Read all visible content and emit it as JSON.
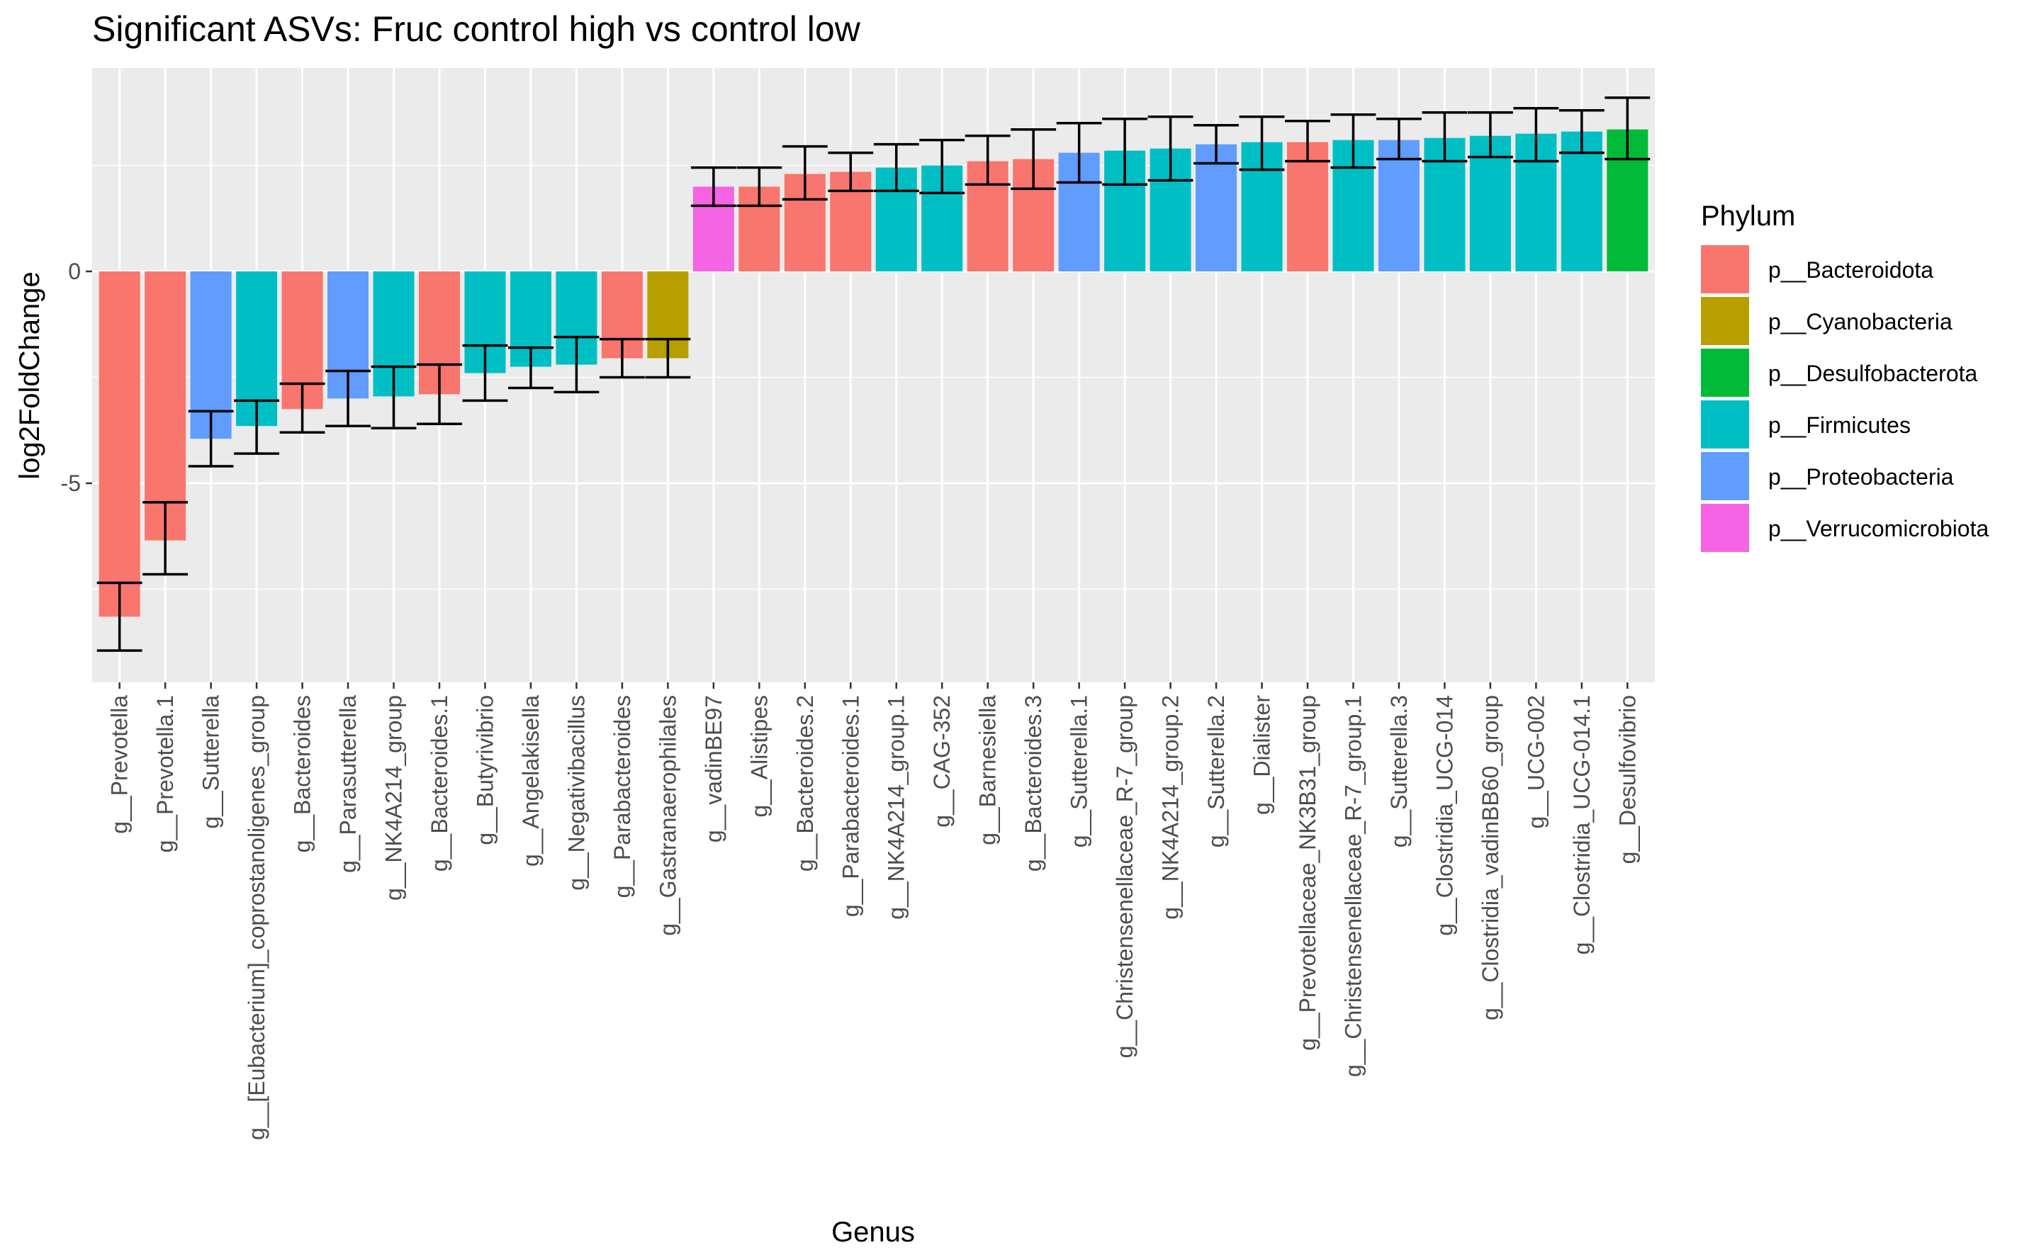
{
  "chart_data": {
    "type": "bar",
    "title": "Significant ASVs: Fruc control high vs control low",
    "xlabel": "Genus",
    "ylabel": "log2FoldChange",
    "ylim": [
      -9.7,
      4.8
    ],
    "yticks": [
      -5,
      0
    ],
    "grid": true,
    "legend": {
      "title": "Phylum",
      "position": "right",
      "entries": [
        {
          "name": "p__Bacteroidota",
          "color": "#F8766D"
        },
        {
          "name": "p__Cyanobacteria",
          "color": "#B79F00"
        },
        {
          "name": "p__Desulfobacterota",
          "color": "#00BA38"
        },
        {
          "name": "p__Firmicutes",
          "color": "#00BFC4"
        },
        {
          "name": "p__Proteobacteria",
          "color": "#619CFF"
        },
        {
          "name": "p__Verrucomicrobiota",
          "color": "#F564E3"
        }
      ]
    },
    "categories": [
      "g__Prevotella",
      "g__Prevotella.1",
      "g__Sutterella",
      "g__[Eubacterium]_coprostanoligenes_group",
      "g__Bacteroides",
      "g__Parasutterella",
      "g__NK4A214_group",
      "g__Bacteroides.1",
      "g__Butyrivibrio",
      "g__Angelakisella",
      "g__Negativibacillus",
      "g__Parabacteroides",
      "g__Gastranaerophilales",
      "g__vadinBE97",
      "g__Alistipes",
      "g__Bacteroides.2",
      "g__Parabacteroides.1",
      "g__NK4A214_group.1",
      "g__CAG-352",
      "g__Barnesiella",
      "g__Bacteroides.3",
      "g__Sutterella.1",
      "g__Christensenellaceae_R-7_group",
      "g__NK4A214_group.2",
      "g__Sutterella.2",
      "g__Dialister",
      "g__Prevotellaceae_NK3B31_group",
      "g__Christensenellaceae_R-7_group.1",
      "g__Sutterella.3",
      "g__Clostridia_UCG-014",
      "g__Clostridia_vadinBB60_group",
      "g__UCG-002",
      "g__Clostridia_UCG-014.1",
      "g__Desulfovibrio"
    ],
    "values": [
      -8.15,
      -6.35,
      -3.95,
      -3.65,
      -3.25,
      -3.0,
      -2.95,
      -2.9,
      -2.4,
      -2.25,
      -2.2,
      -2.05,
      -2.05,
      2.0,
      2.0,
      2.3,
      2.35,
      2.45,
      2.5,
      2.6,
      2.65,
      2.8,
      2.85,
      2.9,
      3.0,
      3.05,
      3.05,
      3.1,
      3.1,
      3.15,
      3.2,
      3.25,
      3.3,
      3.35
    ],
    "err_low": [
      -8.95,
      -7.15,
      -4.6,
      -4.3,
      -3.8,
      -3.65,
      -3.7,
      -3.6,
      -3.05,
      -2.75,
      -2.85,
      -2.5,
      -2.5,
      1.55,
      1.55,
      1.7,
      1.9,
      1.9,
      1.85,
      2.05,
      1.95,
      2.1,
      2.05,
      2.15,
      2.55,
      2.4,
      2.6,
      2.45,
      2.65,
      2.6,
      2.7,
      2.6,
      2.8,
      2.65
    ],
    "err_high": [
      -7.35,
      -5.45,
      -3.3,
      -3.05,
      -2.65,
      -2.35,
      -2.25,
      -2.2,
      -1.75,
      -1.8,
      -1.55,
      -1.6,
      -1.6,
      2.45,
      2.45,
      2.95,
      2.8,
      3.0,
      3.1,
      3.2,
      3.35,
      3.5,
      3.6,
      3.65,
      3.45,
      3.65,
      3.55,
      3.7,
      3.6,
      3.75,
      3.75,
      3.85,
      3.8,
      4.1
    ],
    "phylum": [
      "p__Bacteroidota",
      "p__Bacteroidota",
      "p__Proteobacteria",
      "p__Firmicutes",
      "p__Bacteroidota",
      "p__Proteobacteria",
      "p__Firmicutes",
      "p__Bacteroidota",
      "p__Firmicutes",
      "p__Firmicutes",
      "p__Firmicutes",
      "p__Bacteroidota",
      "p__Cyanobacteria",
      "p__Verrucomicrobiota",
      "p__Bacteroidota",
      "p__Bacteroidota",
      "p__Bacteroidota",
      "p__Firmicutes",
      "p__Firmicutes",
      "p__Bacteroidota",
      "p__Bacteroidota",
      "p__Proteobacteria",
      "p__Firmicutes",
      "p__Firmicutes",
      "p__Proteobacteria",
      "p__Firmicutes",
      "p__Bacteroidota",
      "p__Firmicutes",
      "p__Proteobacteria",
      "p__Firmicutes",
      "p__Firmicutes",
      "p__Firmicutes",
      "p__Firmicutes",
      "p__Desulfobacterota"
    ]
  }
}
